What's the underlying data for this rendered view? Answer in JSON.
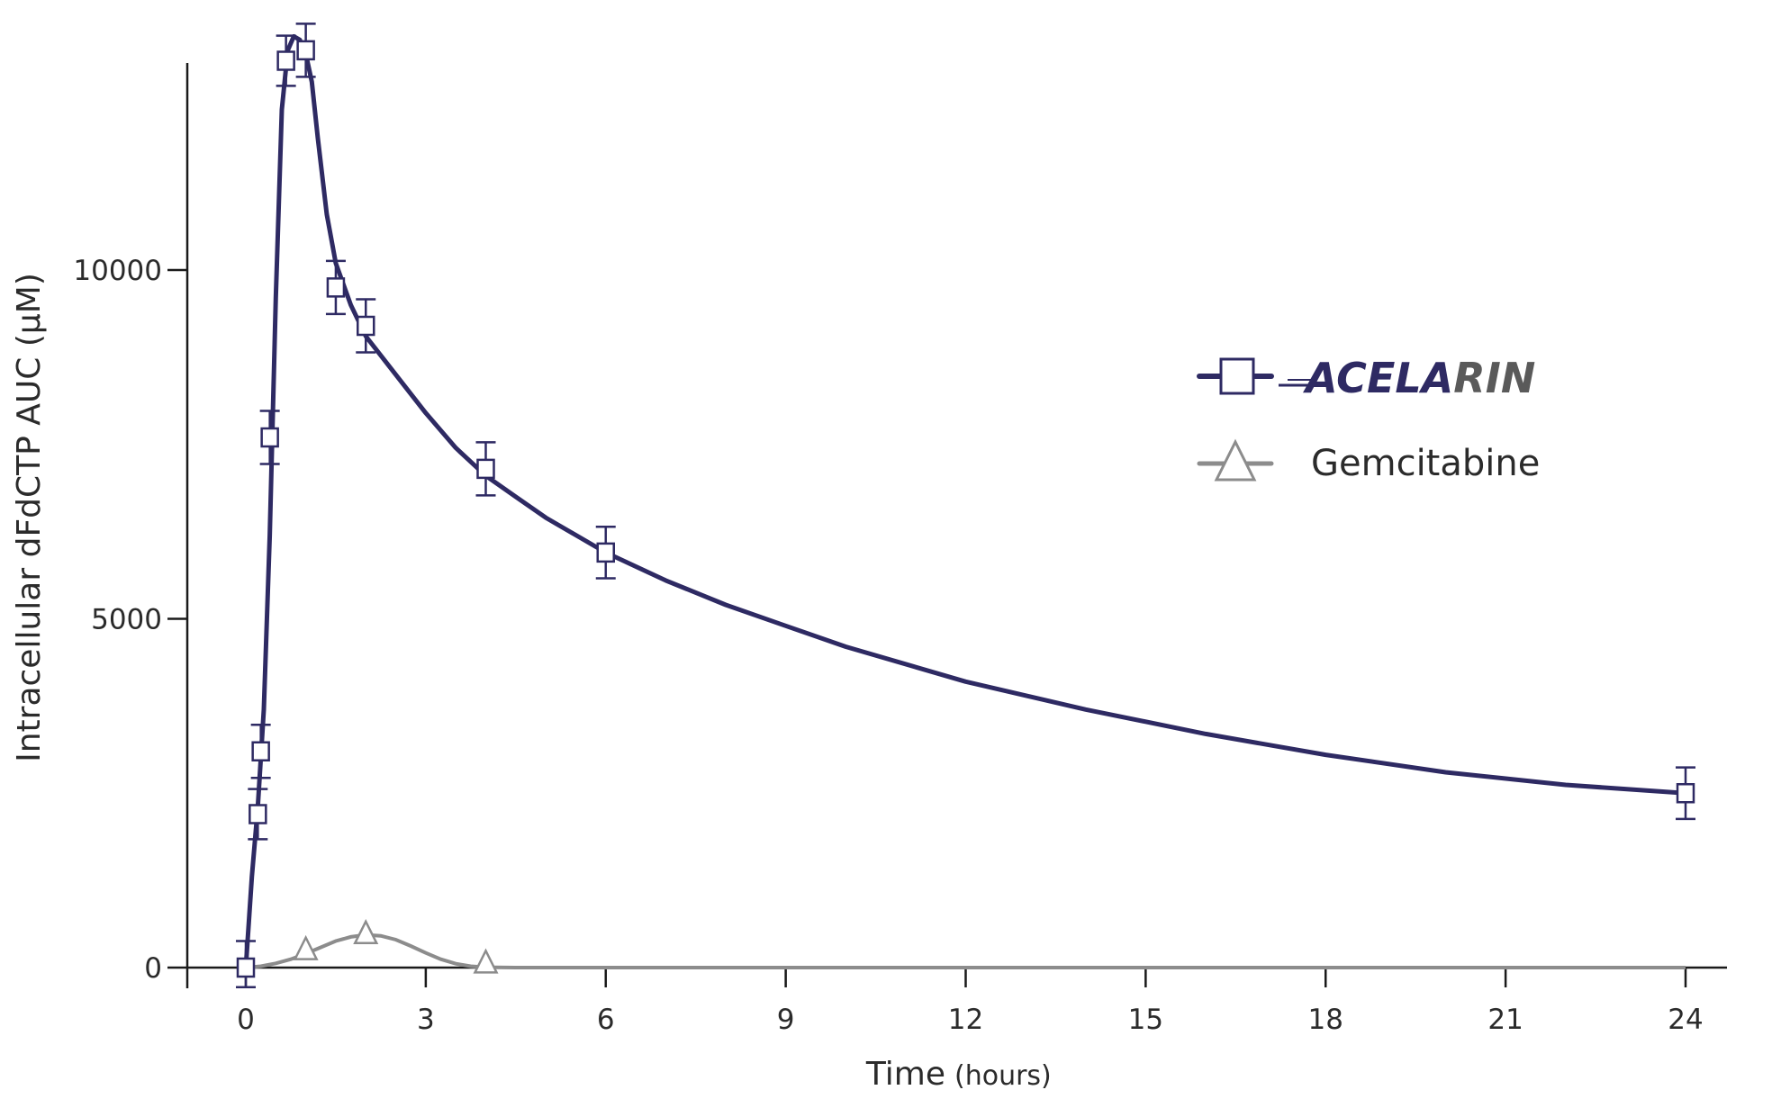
{
  "chart_data": {
    "type": "line",
    "xlabel": "Time",
    "xlabel_unit": "(hours)",
    "ylabel": "Intracellular dFdCTP AUC (µM)",
    "xlim": [
      -1,
      24.4
    ],
    "ylim": [
      0,
      13000
    ],
    "xticks": [
      0,
      3,
      6,
      9,
      12,
      15,
      18,
      21,
      24
    ],
    "yticks": [
      0,
      5000,
      10000
    ],
    "grid": false,
    "legend_position": "right",
    "colors": {
      "acelarin": "#2e2a63",
      "gemcitabine": "#8c8c8c",
      "brand_accent": "#5a5a5a"
    },
    "series": [
      {
        "name": "ACELARIN",
        "marker": "square",
        "color": "#2e2a63",
        "points": [
          {
            "x": 0,
            "y": 0,
            "err": 380
          },
          {
            "x": 0.2,
            "y": 2200,
            "err": 360
          },
          {
            "x": 0.25,
            "y": 3100,
            "err": 380
          },
          {
            "x": 0.4,
            "y": 7600,
            "err": 380
          },
          {
            "x": 0.67,
            "y": 13000,
            "err": 360
          },
          {
            "x": 1,
            "y": 13150,
            "err": 380
          },
          {
            "x": 1.5,
            "y": 9750,
            "err": 380
          },
          {
            "x": 2,
            "y": 9200,
            "err": 380
          },
          {
            "x": 4,
            "y": 7150,
            "err": 380
          },
          {
            "x": 6,
            "y": 5950,
            "err": 370
          },
          {
            "x": 24,
            "y": 2500,
            "err": 370
          }
        ],
        "curve": [
          [
            0,
            0
          ],
          [
            0.1,
            1300
          ],
          [
            0.2,
            2300
          ],
          [
            0.3,
            3700
          ],
          [
            0.4,
            6200
          ],
          [
            0.5,
            9600
          ],
          [
            0.6,
            12300
          ],
          [
            0.7,
            13150
          ],
          [
            0.8,
            13350
          ],
          [
            0.9,
            13300
          ],
          [
            1.0,
            13100
          ],
          [
            1.1,
            12700
          ],
          [
            1.2,
            11900
          ],
          [
            1.35,
            10800
          ],
          [
            1.5,
            10100
          ],
          [
            1.75,
            9500
          ],
          [
            2,
            9050
          ],
          [
            2.5,
            8500
          ],
          [
            3,
            7950
          ],
          [
            3.5,
            7450
          ],
          [
            4,
            7050
          ],
          [
            4.5,
            6750
          ],
          [
            5,
            6450
          ],
          [
            6,
            5950
          ],
          [
            7,
            5550
          ],
          [
            8,
            5200
          ],
          [
            9,
            4900
          ],
          [
            10,
            4600
          ],
          [
            12,
            4100
          ],
          [
            14,
            3700
          ],
          [
            16,
            3350
          ],
          [
            18,
            3050
          ],
          [
            20,
            2800
          ],
          [
            22,
            2620
          ],
          [
            24,
            2500
          ]
        ]
      },
      {
        "name": "Gemcitabine",
        "marker": "triangle",
        "color": "#8c8c8c",
        "points": [
          {
            "x": 1,
            "y": 250
          },
          {
            "x": 2,
            "y": 480
          },
          {
            "x": 4,
            "y": 60
          }
        ],
        "curve": [
          [
            0,
            0
          ],
          [
            0.25,
            20
          ],
          [
            0.5,
            60
          ],
          [
            0.75,
            120
          ],
          [
            1,
            200
          ],
          [
            1.25,
            290
          ],
          [
            1.5,
            380
          ],
          [
            1.75,
            440
          ],
          [
            2,
            470
          ],
          [
            2.25,
            455
          ],
          [
            2.5,
            400
          ],
          [
            2.75,
            310
          ],
          [
            3,
            210
          ],
          [
            3.25,
            120
          ],
          [
            3.5,
            55
          ],
          [
            3.75,
            20
          ],
          [
            4,
            5
          ],
          [
            4.5,
            0
          ],
          [
            6,
            0
          ],
          [
            24,
            0
          ]
        ]
      }
    ]
  },
  "legend": {
    "items": [
      {
        "label": "ACELARIN",
        "label_main": "ACELA",
        "label_tail": "RIN"
      },
      {
        "label": "Gemcitabine"
      }
    ]
  }
}
